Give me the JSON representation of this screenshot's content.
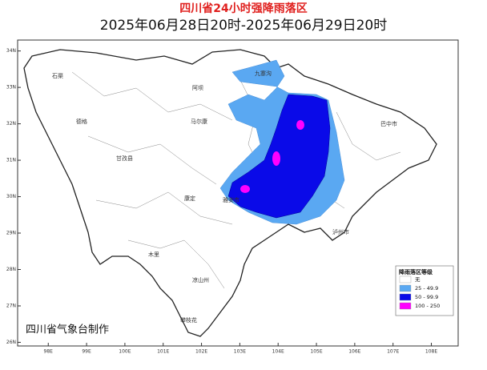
{
  "header": {
    "title": "四川省24小时强降雨落区",
    "subtitle": "2025年06月28日20时-2025年06月29日20时"
  },
  "map": {
    "lat_range": [
      25.9,
      34.3
    ],
    "lon_range": [
      97.2,
      108.7
    ],
    "lat_ticks": [
      {
        "value": 34,
        "label": "34N"
      },
      {
        "value": 33,
        "label": "33N"
      },
      {
        "value": 32,
        "label": "32N"
      },
      {
        "value": 31,
        "label": "31N"
      },
      {
        "value": 30,
        "label": "30N"
      },
      {
        "value": 29,
        "label": "29N"
      },
      {
        "value": 28,
        "label": "28N"
      },
      {
        "value": 27,
        "label": "27N"
      },
      {
        "value": 26,
        "label": "26N"
      }
    ],
    "lon_ticks": [
      {
        "value": 98,
        "label": "98E"
      },
      {
        "value": 99,
        "label": "99E"
      },
      {
        "value": 100,
        "label": "100E"
      },
      {
        "value": 101,
        "label": "101E"
      },
      {
        "value": 102,
        "label": "102E"
      },
      {
        "value": 103,
        "label": "103E"
      },
      {
        "value": 104,
        "label": "104E"
      },
      {
        "value": 105,
        "label": "105E"
      },
      {
        "value": 106,
        "label": "106E"
      },
      {
        "value": 107,
        "label": "107E"
      },
      {
        "value": 108,
        "label": "108E"
      }
    ],
    "places": [
      "石渠",
      "德格",
      "甘孜县",
      "阿坝",
      "马尔康",
      "九寨沟",
      "康定",
      "雅安市",
      "凉山州",
      "木里",
      "巴中市",
      "泸州市",
      "攀枝花"
    ]
  },
  "legend": {
    "title": "降雨落区等级",
    "items": [
      {
        "label": "无",
        "color": "#ffffff"
      },
      {
        "label": "25 - 49.9",
        "color": "#5aa8f2"
      },
      {
        "label": "50 - 99.9",
        "color": "#0a0ae8"
      },
      {
        "label": "100 - 250",
        "color": "#ff00ff"
      }
    ]
  },
  "footer": {
    "credit": "四川省气象台制作"
  }
}
